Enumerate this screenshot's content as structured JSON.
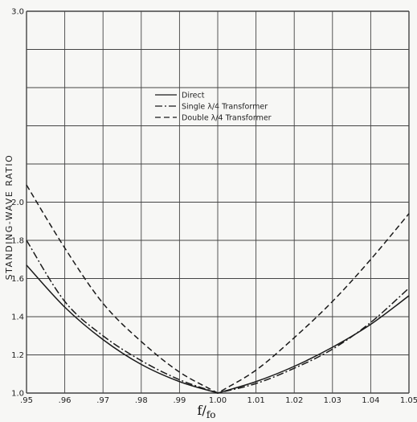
{
  "chart_data": {
    "type": "line",
    "title": "",
    "xlabel": "f/f0",
    "xlabel_main": "f/",
    "xlabel_sub": "fo",
    "ylabel": "STANDING-WAVE RATIO",
    "xlim": [
      0.95,
      1.05
    ],
    "ylim": [
      1.0,
      3.0
    ],
    "x_ticks": [
      "0.95",
      "0.96",
      "0.97",
      "0.98",
      "0.99",
      "1.00",
      "1.01",
      "1.02",
      "1.03",
      "1.04",
      "1.05"
    ],
    "y_ticks": [
      "1.0",
      "1.2",
      "1.4",
      "1.6",
      "1.8",
      "2.0",
      "3.0"
    ],
    "grid": true,
    "legend_position": "upper-center",
    "x": [
      0.95,
      0.96,
      0.97,
      0.98,
      0.99,
      1.0,
      1.01,
      1.02,
      1.03,
      1.04,
      1.05
    ],
    "series": [
      {
        "name": "Direct",
        "style": "solid",
        "values": [
          1.67,
          1.45,
          1.28,
          1.15,
          1.06,
          1.0,
          1.06,
          1.14,
          1.24,
          1.36,
          1.51
        ]
      },
      {
        "name": "Single λ/4 Transformer",
        "style": "dashdot",
        "values": [
          1.8,
          1.48,
          1.3,
          1.17,
          1.07,
          1.0,
          1.05,
          1.13,
          1.23,
          1.37,
          1.55
        ]
      },
      {
        "name": "Double λ/4 Transformer",
        "style": "dashed",
        "values": [
          2.09,
          1.76,
          1.47,
          1.27,
          1.11,
          1.0,
          1.12,
          1.29,
          1.48,
          1.7,
          1.94
        ]
      }
    ]
  }
}
